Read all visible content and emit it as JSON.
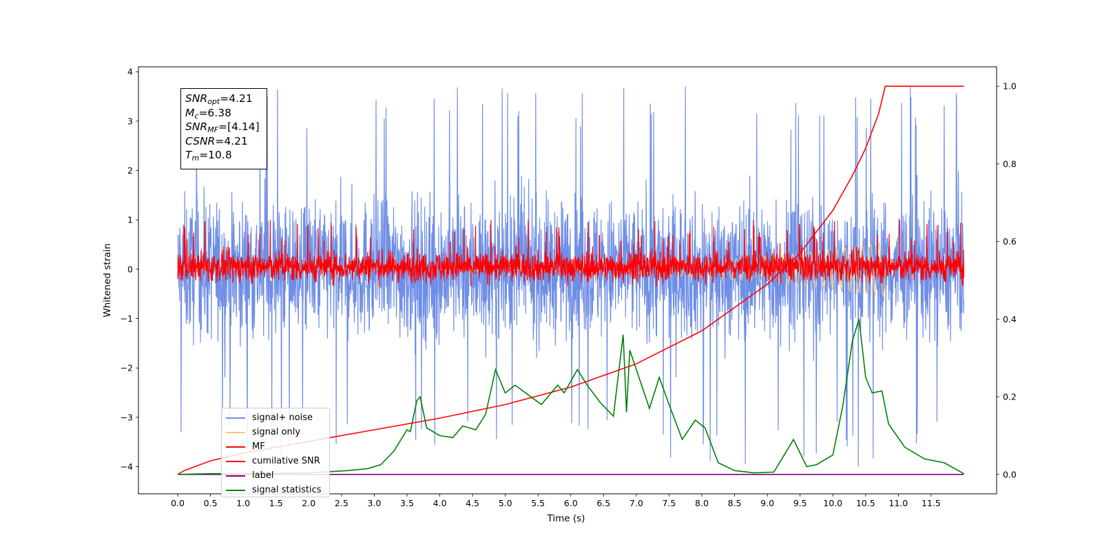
{
  "info_box": {
    "snr_opt": {
      "label": "SNR",
      "sub": "opt",
      "value": "=4.21"
    },
    "mc": {
      "label": "M",
      "sub": "c",
      "value": "=6.38"
    },
    "snr_mf": {
      "label": "SNR",
      "sub": "MF",
      "value": "=[4.14]"
    },
    "csnr": {
      "label": "CSNR",
      "value": "=4.21"
    },
    "tm": {
      "label": "T",
      "sub": "m",
      "value": "=10.8"
    }
  },
  "chart_data": {
    "type": "line",
    "xlabel": "Time (s)",
    "ylabel": "Whitened strain",
    "xlim": [
      -0.6,
      12.5
    ],
    "ylim": [
      -4.55,
      4.1
    ],
    "ylim_right": [
      -0.05,
      1.05
    ],
    "x_ticks": [
      "0.0",
      "0.5",
      "1.0",
      "1.5",
      "2.0",
      "2.5",
      "3.0",
      "3.5",
      "4.0",
      "4.5",
      "5.0",
      "5.5",
      "6.0",
      "6.5",
      "7.0",
      "7.5",
      "8.0",
      "8.5",
      "9.0",
      "9.5",
      "10.0",
      "10.5",
      "11.0",
      "11.5"
    ],
    "y_ticks": [
      "4",
      "3",
      "2",
      "1",
      "0",
      "−1",
      "−2",
      "−3",
      "−4"
    ],
    "y_ticks_right": [
      "1.0",
      "0.8",
      "0.6",
      "0.4",
      "0.2",
      "0.0"
    ],
    "legend_position": "lower-left",
    "series": [
      {
        "name": "signal+ noise",
        "color": "#6f8ee6",
        "axis": "left",
        "style": "noise",
        "x_range": [
          0,
          12
        ],
        "typical_range": [
          -2.0,
          2.0
        ],
        "extremes": [
          -4.05,
          3.72
        ]
      },
      {
        "name": "signal only",
        "color": "#f5c97a",
        "axis": "left",
        "style": "chirp",
        "x_range": [
          0,
          10.8
        ],
        "peak_amplitude": 0.55
      },
      {
        "name": "MF",
        "color": "#ff0000",
        "axis": "left",
        "style": "noise",
        "x_range": [
          0,
          12
        ],
        "typical_range": [
          -0.4,
          0.5
        ],
        "extremes": [
          -0.45,
          1.0
        ]
      },
      {
        "name": "cumilative SNR",
        "color": "#ff0000",
        "axis": "right",
        "x": [
          0.0,
          0.1,
          0.5,
          1.0,
          2.0,
          3.0,
          4.0,
          5.0,
          6.0,
          7.0,
          8.0,
          9.0,
          9.5,
          10.0,
          10.3,
          10.5,
          10.7,
          10.8,
          12.0
        ],
        "y": [
          0.0,
          0.01,
          0.035,
          0.055,
          0.085,
          0.115,
          0.145,
          0.18,
          0.225,
          0.285,
          0.37,
          0.49,
          0.57,
          0.68,
          0.77,
          0.84,
          0.93,
          1.0,
          1.0
        ]
      },
      {
        "name": "label",
        "color": "#800080",
        "axis": "right",
        "x": [
          0,
          12
        ],
        "y": [
          0,
          0
        ]
      },
      {
        "name": "signal statistics",
        "color": "#008000",
        "axis": "right",
        "x": [
          0.0,
          0.5,
          1.0,
          1.5,
          2.0,
          2.3,
          2.6,
          2.9,
          3.1,
          3.3,
          3.5,
          3.55,
          3.65,
          3.7,
          3.8,
          4.0,
          4.2,
          4.35,
          4.55,
          4.7,
          4.85,
          5.0,
          5.15,
          5.35,
          5.55,
          5.8,
          5.9,
          6.1,
          6.25,
          6.45,
          6.65,
          6.8,
          6.85,
          6.9,
          7.0,
          7.2,
          7.35,
          7.5,
          7.7,
          7.9,
          8.05,
          8.25,
          8.5,
          8.8,
          9.1,
          9.4,
          9.6,
          9.75,
          10.0,
          10.15,
          10.3,
          10.4,
          10.5,
          10.6,
          10.75,
          10.85,
          11.1,
          11.4,
          11.7,
          12.0
        ],
        "y": [
          0.0,
          0.002,
          0.002,
          0.003,
          0.004,
          0.007,
          0.01,
          0.015,
          0.025,
          0.06,
          0.115,
          0.11,
          0.19,
          0.2,
          0.12,
          0.1,
          0.095,
          0.125,
          0.115,
          0.155,
          0.27,
          0.21,
          0.23,
          0.205,
          0.18,
          0.23,
          0.21,
          0.27,
          0.23,
          0.185,
          0.15,
          0.36,
          0.16,
          0.32,
          0.27,
          0.17,
          0.25,
          0.18,
          0.09,
          0.14,
          0.12,
          0.03,
          0.01,
          0.004,
          0.006,
          0.09,
          0.02,
          0.025,
          0.05,
          0.175,
          0.345,
          0.4,
          0.25,
          0.21,
          0.215,
          0.13,
          0.07,
          0.04,
          0.03,
          0.002
        ]
      }
    ]
  }
}
